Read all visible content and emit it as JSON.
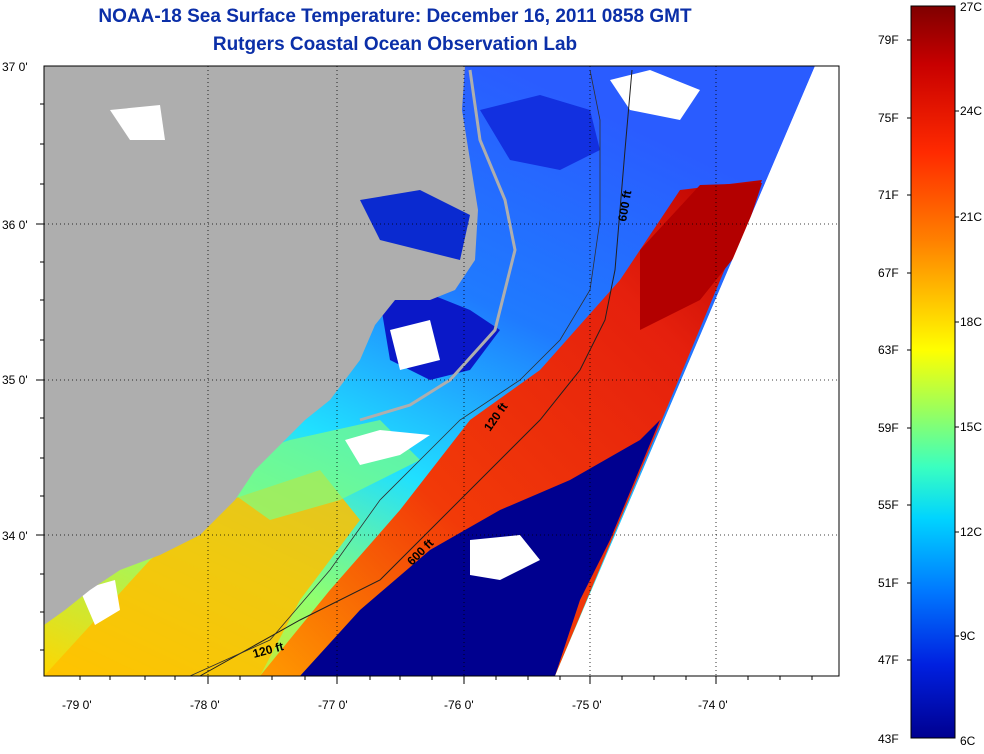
{
  "title_line1": "NOAA-18 Sea Surface Temperature:  December 16, 2011 0858 GMT",
  "title_line2": "Rutgers Coastal Ocean Observation Lab",
  "lat_labels": [
    "37 0'",
    "36 0'",
    "35 0'",
    "34 0'"
  ],
  "lon_labels": [
    "-79 0'",
    "-78 0'",
    "-77 0'",
    "-76 0'",
    "-75 0'",
    "-74 0'"
  ],
  "isobath_labels": [
    "600 ft",
    "120 ft",
    "600 ft",
    "120 ft"
  ],
  "colorbar": {
    "fahrenheit": [
      "79F",
      "75F",
      "71F",
      "67F",
      "63F",
      "59F",
      "55F",
      "51F",
      "47F",
      "43F"
    ],
    "celsius": [
      "27C",
      "24C",
      "21C",
      "18C",
      "15C",
      "12C",
      "9C",
      "6C"
    ],
    "colors": [
      "#7f0000",
      "#c80000",
      "#ff2a00",
      "#ff8000",
      "#ffd400",
      "#ffff00",
      "#9dff5a",
      "#3affc0",
      "#00d4ff",
      "#0078ff",
      "#0020e0",
      "#000090"
    ]
  },
  "colors": {
    "land": "#aeaeae",
    "title": "#0b2fa8",
    "cold": "#00008f",
    "warm": "#e4200e",
    "hot": "#b80000"
  }
}
